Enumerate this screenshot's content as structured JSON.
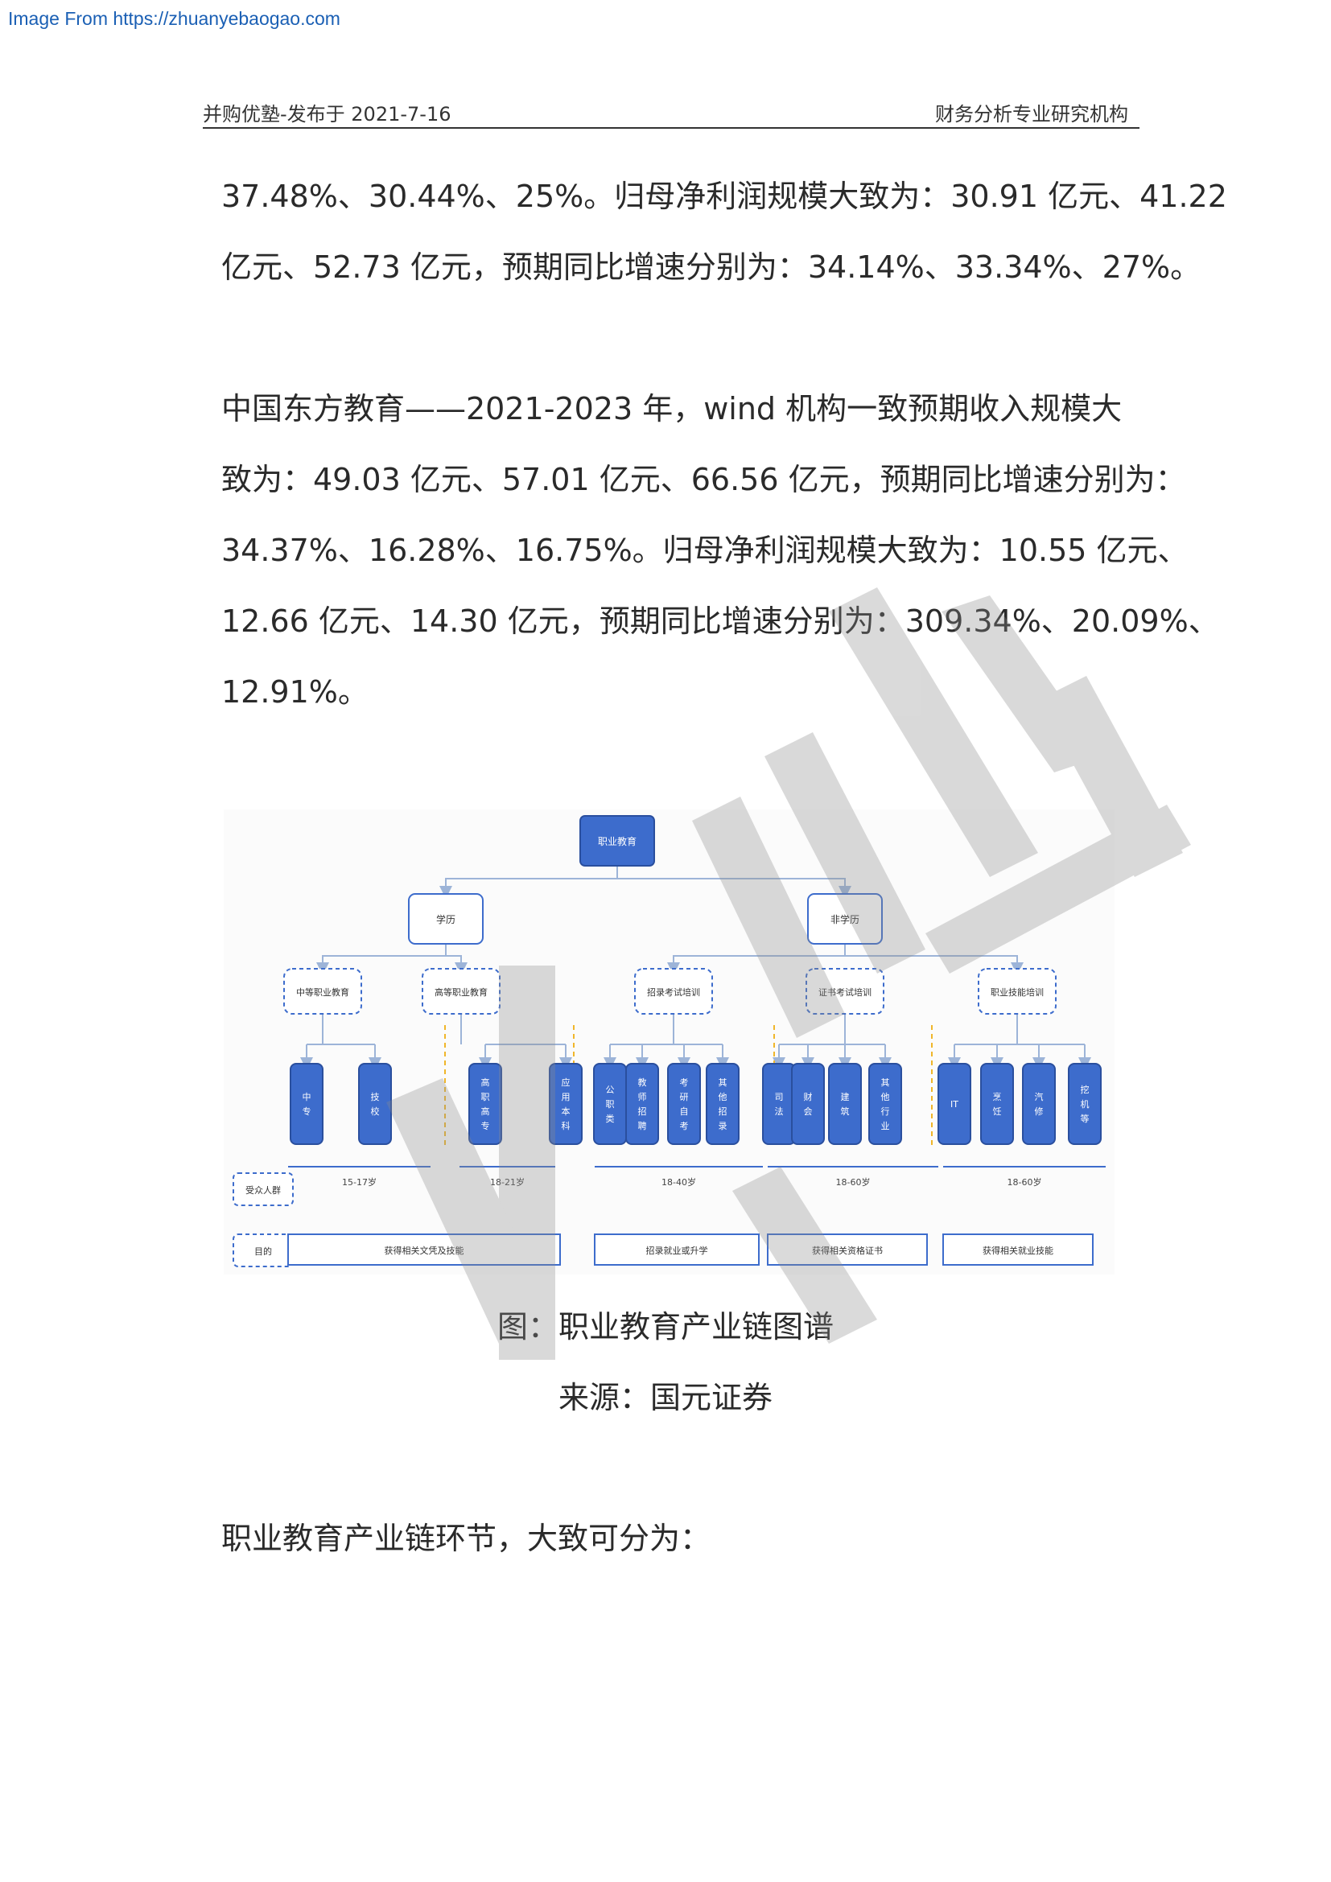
{
  "source": "Image From https://zhuanyebaogao.com",
  "header": {
    "left": "并购优塾-发布于 2021-7-16",
    "right": "财务分析专业研究机构"
  },
  "para1": [
    "37.48%、30.44%、25%。归母净利润规模大致为：30.91 亿元、41.22",
    "亿元、52.73 亿元，预期同比增速分别为：34.14%、33.34%、27%。"
  ],
  "para2": [
    "中国东方教育——2021-2023 年，wind 机构一致预期收入规模大",
    "致为：49.03 亿元、57.01 亿元、66.56 亿元，预期同比增速分别为：",
    "34.37%、16.28%、16.75%。归母净利润规模大致为：10.55 亿元、",
    "12.66 亿元、14.30 亿元，预期同比增速分别为：309.34%、20.09%、",
    "12.91%。"
  ],
  "diagram": {
    "root": "职业教育",
    "level1": [
      "学历",
      "非学历"
    ],
    "level2": [
      "中等职业教育",
      "高等职业教育",
      "招录考试培训",
      "证书考试培训",
      "职业技能培训"
    ],
    "leaves": [
      [
        "中专",
        "技校"
      ],
      [
        "高职高专",
        "应用本科"
      ],
      [
        "公职类",
        "教师招聘",
        "考研自考",
        "其他招录"
      ],
      [
        "司法",
        "财会",
        "建筑",
        "其他行业"
      ],
      [
        "IT",
        "烹饪",
        "汽修",
        "挖机等"
      ]
    ],
    "audience_label": "受众人群",
    "ages": [
      "15-17岁",
      "18-21岁",
      "18-40岁",
      "18-60岁",
      "18-60岁"
    ],
    "purpose_label": "目的",
    "purposes": [
      "获得相关文凭及技能",
      "招录就业或升学",
      "获得相关资格证书",
      "获得相关就业技能"
    ]
  },
  "caption": "图：职业教育产业链图谱",
  "source_note": "来源：国元证券",
  "para3": "职业教育产业链环节，大致可分为：",
  "colors": {
    "node_blue": "#3d6ccc",
    "node_border": "#2a4f9e",
    "line": "#9db4d8",
    "divider": "#f0b62a"
  }
}
